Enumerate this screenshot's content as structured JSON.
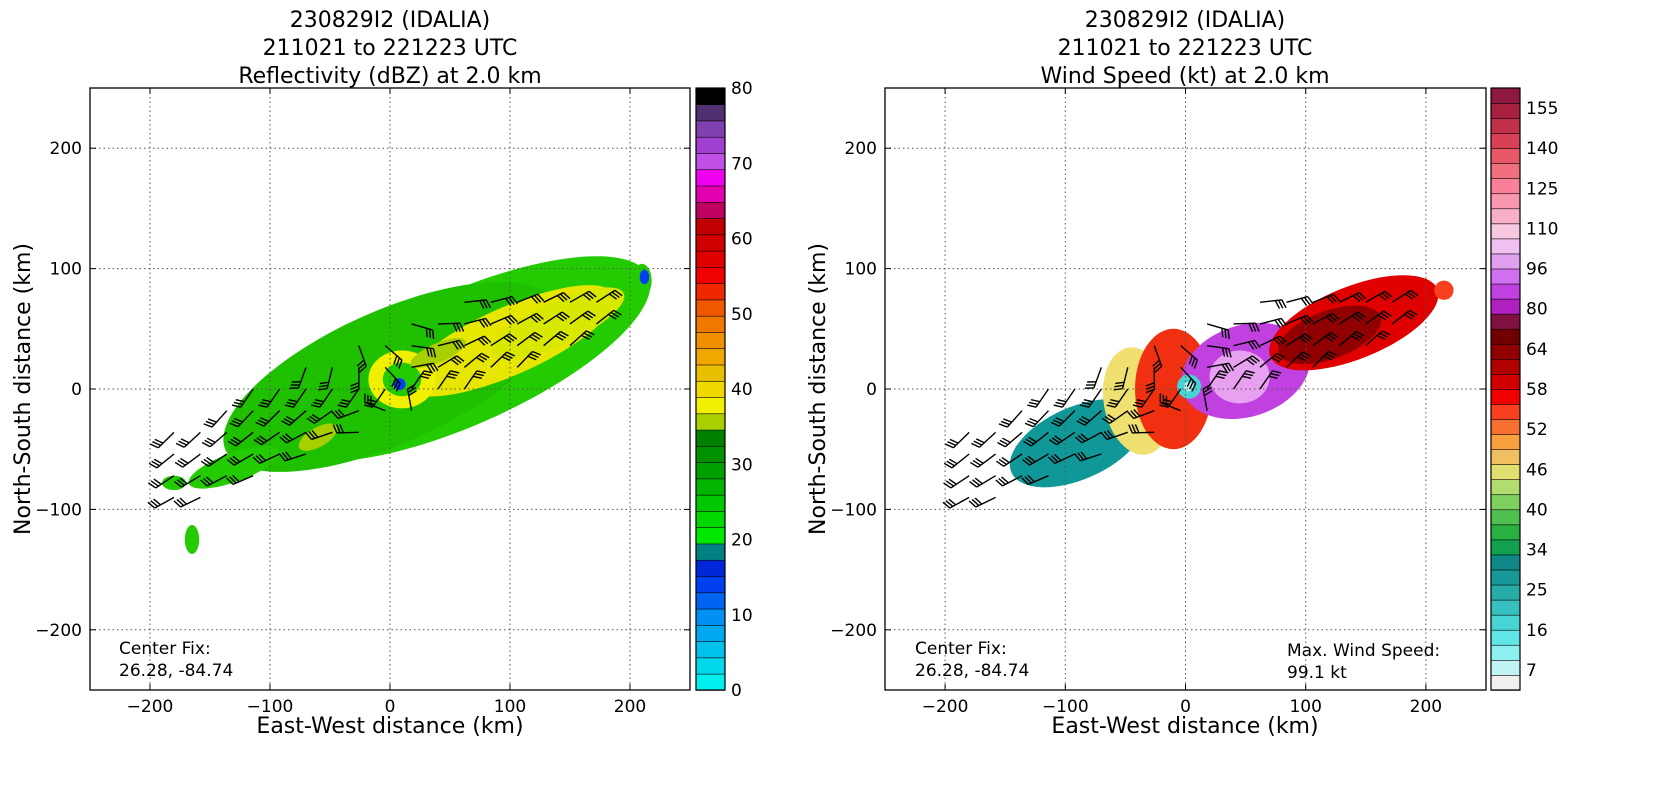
{
  "chart_data": [
    {
      "type": "heatmap",
      "title_lines": [
        "230829I2 (IDALIA)",
        "211021 to 221223 UTC",
        "Reflectivity (dBZ) at 2.0 km"
      ],
      "xlabel": "East-West distance (km)",
      "ylabel": "North-South distance (km)",
      "xlim": [
        -250,
        250
      ],
      "ylim": [
        -250,
        250
      ],
      "xticks": [
        -200,
        -100,
        0,
        100,
        200
      ],
      "yticks": [
        -200,
        -100,
        0,
        100,
        200
      ],
      "grid": true,
      "center_fix": {
        "label": "Center Fix:",
        "value": "26.28, -84.74"
      },
      "colorbar": {
        "min": 0,
        "max": 80,
        "step": 2.5,
        "ticks": [
          0,
          10,
          20,
          30,
          40,
          50,
          60,
          70,
          80
        ],
        "colors": [
          "#00f0f0",
          "#00d8ec",
          "#00c0ec",
          "#00a8f0",
          "#0090f4",
          "#0064f0",
          "#0040f0",
          "#0028d8",
          "#008080",
          "#00e800",
          "#00d800",
          "#00c800",
          "#00b400",
          "#00a000",
          "#009000",
          "#008000",
          "#a8d000",
          "#f0f000",
          "#f0d800",
          "#e8c000",
          "#f0a800",
          "#f09000",
          "#f07800",
          "#f05800",
          "#f02800",
          "#f00000",
          "#e00000",
          "#d00000",
          "#c00000",
          "#c00060",
          "#e000b0",
          "#f000f0",
          "#c050e8",
          "#a040d0",
          "#8040b0",
          "#503070",
          "#000000"
        ]
      },
      "blobs": [
        {
          "cx": 60,
          "cy": 25,
          "rx": 170,
          "ry": 55,
          "rot": 24,
          "c": "#22cc00"
        },
        {
          "cx": 0,
          "cy": 10,
          "rx": 150,
          "ry": 55,
          "rot": 24,
          "c": "#1fc000"
        },
        {
          "cx": 100,
          "cy": 40,
          "rx": 95,
          "ry": 28,
          "rot": 24,
          "c": "#e6e600"
        },
        {
          "cx": 140,
          "cy": 55,
          "rx": 60,
          "ry": 18,
          "rot": 24,
          "c": "#d8e800"
        },
        {
          "cx": 10,
          "cy": 8,
          "rx": 28,
          "ry": 24,
          "rot": 0,
          "c": "#f0f000"
        },
        {
          "cx": 10,
          "cy": 8,
          "rx": 16,
          "ry": 14,
          "rot": 0,
          "c": "#22cc00"
        },
        {
          "cx": 8,
          "cy": 4,
          "rx": 5,
          "ry": 5,
          "rot": 0,
          "c": "#0040f0"
        },
        {
          "cx": -130,
          "cy": -65,
          "rx": 40,
          "ry": 12,
          "rot": 20,
          "c": "#22cc00"
        },
        {
          "cx": -180,
          "cy": -78,
          "rx": 10,
          "ry": 6,
          "rot": 0,
          "c": "#22cc00"
        },
        {
          "cx": -165,
          "cy": -125,
          "rx": 6,
          "ry": 12,
          "rot": 0,
          "c": "#22cc00"
        },
        {
          "cx": 210,
          "cy": 90,
          "rx": 8,
          "ry": 14,
          "rot": 0,
          "c": "#22cc00"
        },
        {
          "cx": 212,
          "cy": 93,
          "rx": 4,
          "ry": 6,
          "rot": 0,
          "c": "#0040f0"
        },
        {
          "cx": -60,
          "cy": -40,
          "rx": 18,
          "ry": 8,
          "rot": 30,
          "c": "#a8d000"
        },
        {
          "cx": 40,
          "cy": 30,
          "rx": 25,
          "ry": 8,
          "rot": 24,
          "c": "#a8d000"
        }
      ]
    },
    {
      "type": "heatmap",
      "title_lines": [
        "230829I2 (IDALIA)",
        "211021 to 221223 UTC",
        "Wind Speed (kt) at 2.0 km"
      ],
      "xlabel": "East-West distance (km)",
      "ylabel": "North-South distance (km)",
      "xlim": [
        -250,
        250
      ],
      "ylim": [
        -250,
        250
      ],
      "xticks": [
        -200,
        -100,
        0,
        100,
        200
      ],
      "yticks": [
        -200,
        -100,
        0,
        100,
        200
      ],
      "grid": true,
      "center_fix": {
        "label": "Center Fix:",
        "value": "26.28, -84.74"
      },
      "max_wind": {
        "label": "Max. Wind Speed:",
        "value": "99.1 kt"
      },
      "colorbar": {
        "ticks": [
          7,
          16,
          25,
          34,
          40,
          46,
          52,
          58,
          64,
          80,
          96,
          110,
          125,
          140,
          155
        ],
        "colors": [
          "#f0f0f0",
          "#c0f4f4",
          "#8cf0f0",
          "#60e4e4",
          "#48d4d4",
          "#38c0c0",
          "#28aca8",
          "#189898",
          "#108888",
          "#10a050",
          "#28b040",
          "#50c050",
          "#80d060",
          "#b0dc70",
          "#e0e070",
          "#f0c060",
          "#f8a040",
          "#f87030",
          "#f84020",
          "#f00000",
          "#d00000",
          "#b00000",
          "#900000",
          "#700000",
          "#801040",
          "#b020c0",
          "#c040e0",
          "#d070f0",
          "#e0a0f0",
          "#f0c0f0",
          "#f8c8e0",
          "#f8b0c8",
          "#f898b0",
          "#f88098",
          "#f07080",
          "#e85868",
          "#d84058",
          "#c03048",
          "#a82040",
          "#901840"
        ]
      },
      "blobs": [
        {
          "cx": -90,
          "cy": -45,
          "rx": 60,
          "ry": 30,
          "rot": 24,
          "c": "#109898"
        },
        {
          "cx": -40,
          "cy": -10,
          "rx": 28,
          "ry": 45,
          "rot": 10,
          "c": "#f0e070"
        },
        {
          "cx": -10,
          "cy": 0,
          "rx": 32,
          "ry": 50,
          "rot": 0,
          "c": "#f03010"
        },
        {
          "cx": 50,
          "cy": 15,
          "rx": 55,
          "ry": 38,
          "rot": 18,
          "c": "#c040e0"
        },
        {
          "cx": 45,
          "cy": 10,
          "rx": 25,
          "ry": 22,
          "rot": 0,
          "c": "#e8a0f0"
        },
        {
          "cx": 140,
          "cy": 55,
          "rx": 75,
          "ry": 30,
          "rot": 22,
          "c": "#e00000"
        },
        {
          "cx": 120,
          "cy": 45,
          "rx": 45,
          "ry": 20,
          "rot": 20,
          "c": "#900000"
        },
        {
          "cx": 3,
          "cy": 2,
          "rx": 10,
          "ry": 10,
          "rot": 0,
          "c": "#48d4d4"
        },
        {
          "cx": 3,
          "cy": 2,
          "rx": 4,
          "ry": 4,
          "rot": 0,
          "c": "#c0f4f4"
        },
        {
          "cx": 215,
          "cy": 82,
          "rx": 8,
          "ry": 8,
          "rot": 0,
          "c": "#f84020"
        }
      ]
    }
  ]
}
